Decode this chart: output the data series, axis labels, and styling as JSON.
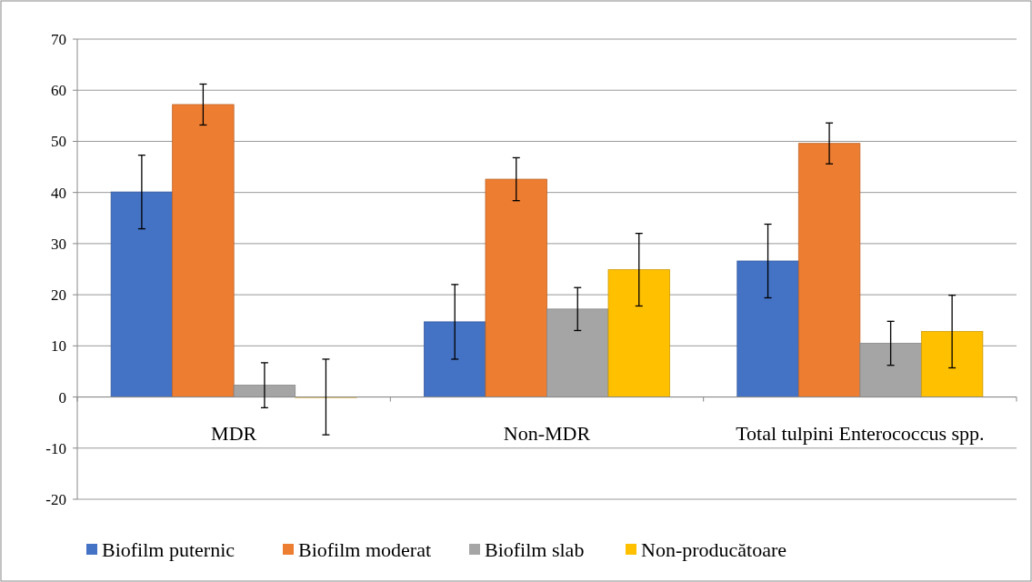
{
  "chart_data": {
    "type": "bar",
    "categories": [
      "MDR",
      "Non-MDR",
      "Total tulpini Enterococcus spp."
    ],
    "series": [
      {
        "name": "Biofilm puternic",
        "color": "#4472c4",
        "values": [
          40.1,
          14.7,
          26.6
        ],
        "errors": [
          7.2,
          7.3,
          7.2
        ]
      },
      {
        "name": "Biofilm moderat",
        "color": "#ed7d31",
        "values": [
          57.2,
          42.6,
          49.6
        ],
        "errors": [
          4,
          4.2,
          4
        ]
      },
      {
        "name": "Biofilm slab",
        "color": "#a5a5a5",
        "values": [
          2.3,
          17.2,
          10.5
        ],
        "errors": [
          4.4,
          4.2,
          4.3
        ]
      },
      {
        "name": "Non-producătoare",
        "color": "#ffc000",
        "values": [
          0,
          24.9,
          12.8
        ],
        "errors": [
          7.4,
          7.1,
          7.1
        ]
      }
    ],
    "ylim": [
      -20,
      70
    ],
    "yticks": [
      -20,
      -10,
      0,
      10,
      20,
      30,
      40,
      50,
      60,
      70
    ],
    "grid": "y",
    "legend": "bottom"
  }
}
